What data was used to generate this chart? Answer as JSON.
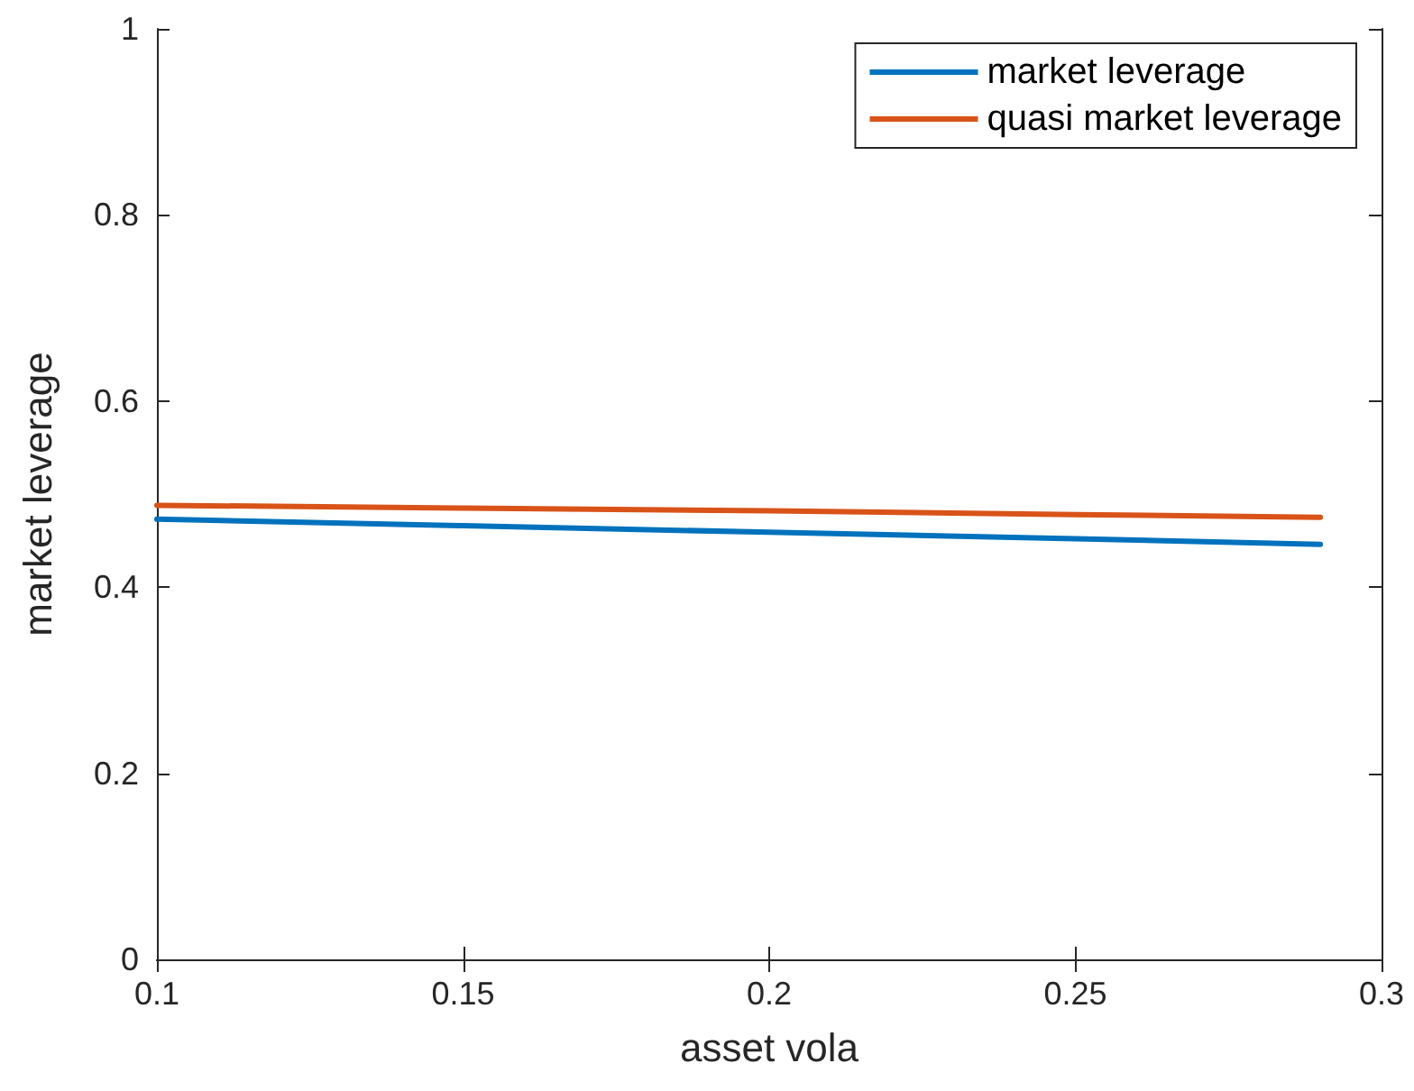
{
  "chart_data": {
    "type": "line",
    "xlabel": "asset vola",
    "ylabel": "market leverage",
    "x": [
      0.1,
      0.15,
      0.2,
      0.25,
      0.29
    ],
    "series": [
      {
        "name": "market leverage",
        "color": "#0072bd",
        "values": [
          0.473,
          0.466,
          0.459,
          0.452,
          0.446
        ]
      },
      {
        "name": "quasi market leverage",
        "color": "#d95319",
        "values": [
          0.488,
          0.485,
          0.482,
          0.478,
          0.475
        ]
      }
    ],
    "xlim": [
      0.1,
      0.3
    ],
    "xticks": [
      0.1,
      0.15,
      0.2,
      0.25,
      0.3
    ],
    "ylim": [
      0,
      1
    ],
    "yticks": [
      0,
      0.2,
      0.4,
      0.6,
      0.8,
      1
    ],
    "grid": false,
    "legend": "top right",
    "marker": "none",
    "line_style": "solid"
  }
}
